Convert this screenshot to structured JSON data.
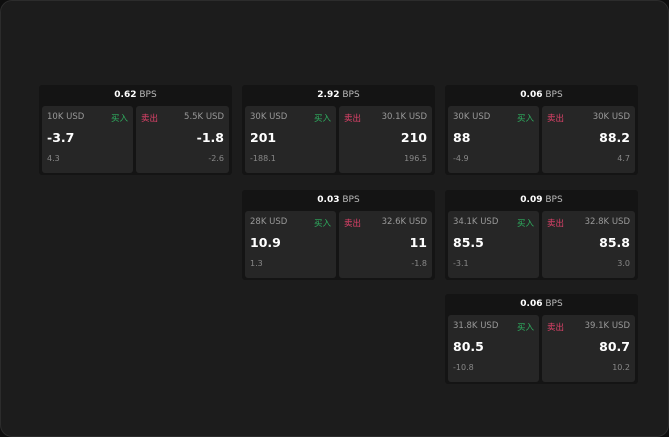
{
  "unit": "BPS",
  "buy_label": "买入",
  "sell_label": "卖出",
  "colors": {
    "buy": "#2fb060",
    "sell": "#e0426a"
  },
  "cards": [
    {
      "spread": "0.62",
      "bid_size": "10K USD",
      "bid": "-3.7",
      "bid_change": "4.3",
      "ask_size": "5.5K USD",
      "ask": "-1.8",
      "ask_change": "-2.6"
    },
    {
      "spread": "2.92",
      "bid_size": "30K USD",
      "bid": "201",
      "bid_change": "-188.1",
      "ask_size": "30.1K USD",
      "ask": "210",
      "ask_change": "196.5"
    },
    {
      "spread": "0.06",
      "bid_size": "30K USD",
      "bid": "88",
      "bid_change": "-4.9",
      "ask_size": "30K USD",
      "ask": "88.2",
      "ask_change": "4.7"
    },
    {
      "spread": "0.03",
      "bid_size": "28K USD",
      "bid": "10.9",
      "bid_change": "1.3",
      "ask_size": "32.6K USD",
      "ask": "11",
      "ask_change": "-1.8"
    },
    {
      "spread": "0.09",
      "bid_size": "34.1K USD",
      "bid": "85.5",
      "bid_change": "-3.1",
      "ask_size": "32.8K USD",
      "ask": "85.8",
      "ask_change": "3.0"
    },
    {
      "spread": "0.06",
      "bid_size": "31.8K USD",
      "bid": "80.5",
      "bid_change": "-10.8",
      "ask_size": "39.1K USD",
      "ask": "80.7",
      "ask_change": "10.2"
    }
  ]
}
